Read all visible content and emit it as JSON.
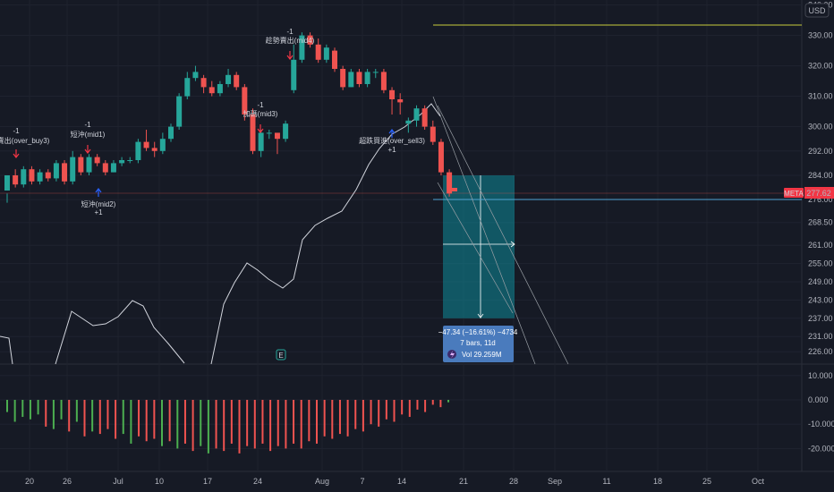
{
  "chart_data": {
    "type": "candlestick",
    "ticker": "META",
    "currency": "USD",
    "last_price": "277.62",
    "price_ticks": [
      "340.00",
      "330.00",
      "320.00",
      "310.00",
      "300.00",
      "292.00",
      "284.00",
      "276.00",
      "268.50",
      "261.00",
      "255.00",
      "249.00",
      "243.00",
      "237.00",
      "231.00",
      "226.00"
    ],
    "price_tick_values": [
      340,
      330,
      320,
      310,
      300,
      292,
      284,
      276,
      268.5,
      261,
      255,
      249,
      243,
      237,
      231,
      226
    ],
    "osc_ticks": [
      "10.000",
      "0.000",
      "-10.000",
      "-20.000"
    ],
    "osc_tick_values": [
      10,
      0,
      -10,
      -20
    ],
    "time_ticks": [
      "20",
      "26",
      "Jul",
      "10",
      "17",
      "24",
      "Aug",
      "7",
      "14",
      "21",
      "28",
      "Sep",
      "11",
      "18",
      "25",
      "Oct"
    ],
    "candles": [
      [
        1,
        279,
        284,
        278,
        275
      ],
      [
        2,
        284,
        281,
        286,
        280
      ],
      [
        3,
        281,
        286,
        287,
        280
      ],
      [
        4,
        286,
        282,
        287,
        281
      ],
      [
        5,
        282,
        285,
        286,
        281
      ],
      [
        6,
        285,
        283,
        286,
        282
      ],
      [
        7,
        283,
        288,
        289,
        282
      ],
      [
        8,
        288,
        282,
        289,
        281
      ],
      [
        9,
        282,
        290,
        292,
        281
      ],
      [
        10,
        290,
        285,
        291,
        284
      ],
      [
        11,
        285,
        290,
        291,
        284
      ],
      [
        12,
        290,
        288,
        291,
        287
      ],
      [
        13,
        288,
        285,
        289,
        284
      ],
      [
        14,
        285,
        288,
        289,
        285
      ],
      [
        15,
        288,
        289,
        290,
        287
      ],
      [
        16,
        289,
        289,
        290,
        288
      ],
      [
        17,
        289,
        295,
        296,
        288
      ],
      [
        18,
        295,
        293,
        299,
        292
      ],
      [
        19,
        293,
        292,
        295,
        290
      ],
      [
        20,
        292,
        296,
        298,
        291
      ],
      [
        21,
        296,
        300,
        301,
        295
      ],
      [
        22,
        300,
        310,
        311,
        299
      ],
      [
        23,
        310,
        316,
        318,
        309
      ],
      [
        24,
        316,
        318,
        320,
        315
      ],
      [
        25,
        316,
        313,
        317,
        311
      ],
      [
        26,
        313,
        311,
        315,
        310
      ],
      [
        27,
        311,
        314,
        315,
        310
      ],
      [
        28,
        314,
        317,
        319,
        313
      ],
      [
        29,
        317,
        313,
        318,
        312
      ],
      [
        30,
        313,
        304,
        314,
        302
      ],
      [
        31,
        304,
        292,
        306,
        291
      ],
      [
        32,
        292,
        298,
        299,
        290
      ],
      [
        33,
        298,
        298,
        299,
        296
      ],
      [
        34,
        298,
        296,
        297,
        291
      ],
      [
        35,
        296,
        301,
        302,
        295
      ],
      [
        36,
        312,
        322,
        327,
        311
      ],
      [
        37,
        322,
        330,
        331,
        321
      ],
      [
        38,
        330,
        327,
        331,
        326
      ],
      [
        39,
        327,
        322,
        329,
        321
      ],
      [
        40,
        322,
        326,
        327,
        321
      ],
      [
        41,
        325,
        319,
        326,
        318
      ],
      [
        42,
        319,
        313,
        320,
        312
      ],
      [
        43,
        313,
        318,
        319,
        313
      ],
      [
        44,
        318,
        314,
        319,
        313
      ],
      [
        45,
        314,
        318,
        319,
        313
      ],
      [
        46,
        318,
        318,
        319,
        316
      ],
      [
        47,
        318,
        312,
        319,
        311
      ],
      [
        48,
        312,
        309,
        313,
        304
      ],
      [
        49,
        309,
        308,
        311,
        304
      ],
      [
        50,
        301,
        302,
        303,
        298
      ],
      [
        51,
        302,
        306,
        307,
        300
      ],
      [
        52,
        306,
        300,
        307,
        299
      ],
      [
        53,
        300,
        295,
        302,
        294
      ],
      [
        54,
        295,
        285,
        296,
        284
      ],
      [
        55,
        285,
        278,
        286,
        277
      ]
    ],
    "ma_line_label": "",
    "position": {
      "label_change": "−47.34 (−16.61%) −4734",
      "label_bars": "7 bars, 11d",
      "label_vol": "Vol 29.259M",
      "entry": 284,
      "target": 237
    },
    "signals": [
      {
        "count": "-1",
        "text": "超買賣出(over_buy3)",
        "dir": "down"
      },
      {
        "count": "-1",
        "text": "短沖(mid1)",
        "dir": "down"
      },
      {
        "count": "+1",
        "text": "短沖(mid2)",
        "dir": "up"
      },
      {
        "count": "-1",
        "text": "加碼(mid3)",
        "dir": "down"
      },
      {
        "count": "-1",
        "text": "趁勢賣出(mid4)",
        "dir": "down"
      },
      {
        "count": "+1",
        "text": "超跌買進(over_sell3)",
        "dir": "up"
      }
    ],
    "oscillator": {
      "values": [
        -5,
        -9,
        -7,
        -8,
        -6,
        -11,
        -12,
        -8,
        -13,
        -9,
        -15,
        -13,
        -14,
        -12,
        -16,
        -14,
        -18,
        -15,
        -17,
        -16,
        -19,
        -17,
        -20,
        -18,
        -21,
        -19,
        -22,
        -20,
        -21,
        -18,
        -22,
        -19,
        -20,
        -18,
        -21,
        -19,
        -20,
        -18,
        -20,
        -17,
        -18,
        -15,
        -16,
        -14,
        -15,
        -12,
        -13,
        -10,
        -11,
        -8,
        -9,
        -6,
        -7,
        -4,
        -5,
        -2,
        -3,
        -1
      ],
      "colors": [
        "g",
        "g",
        "g",
        "g",
        "g",
        "r",
        "g",
        "g",
        "r",
        "g",
        "r",
        "g",
        "r",
        "r",
        "r",
        "g",
        "g",
        "r",
        "r",
        "r",
        "g",
        "r",
        "g",
        "r",
        "r",
        "g",
        "g",
        "r",
        "r",
        "r",
        "r",
        "r",
        "r",
        "r",
        "r",
        "r",
        "r",
        "r",
        "r",
        "r",
        "r",
        "r",
        "r",
        "r",
        "r",
        "r",
        "r",
        "r",
        "r",
        "r",
        "r",
        "r",
        "r",
        "r",
        "r",
        "r",
        "r",
        "g"
      ]
    },
    "colors": {
      "up": "#26a69a",
      "down": "#ef5350",
      "osc_up": "#4caf50",
      "osc_down": "#f05350",
      "target_fill": "#0e8a99",
      "line": "#d1d4dc",
      "yellow": "#c8cc3a",
      "signal_up": "#2962ff",
      "signal_down": "#f23645",
      "price_tag": "#f23645"
    }
  },
  "axis": {
    "currency_button": "USD",
    "ticker_tag": "META",
    "price_tag": "277.62"
  }
}
